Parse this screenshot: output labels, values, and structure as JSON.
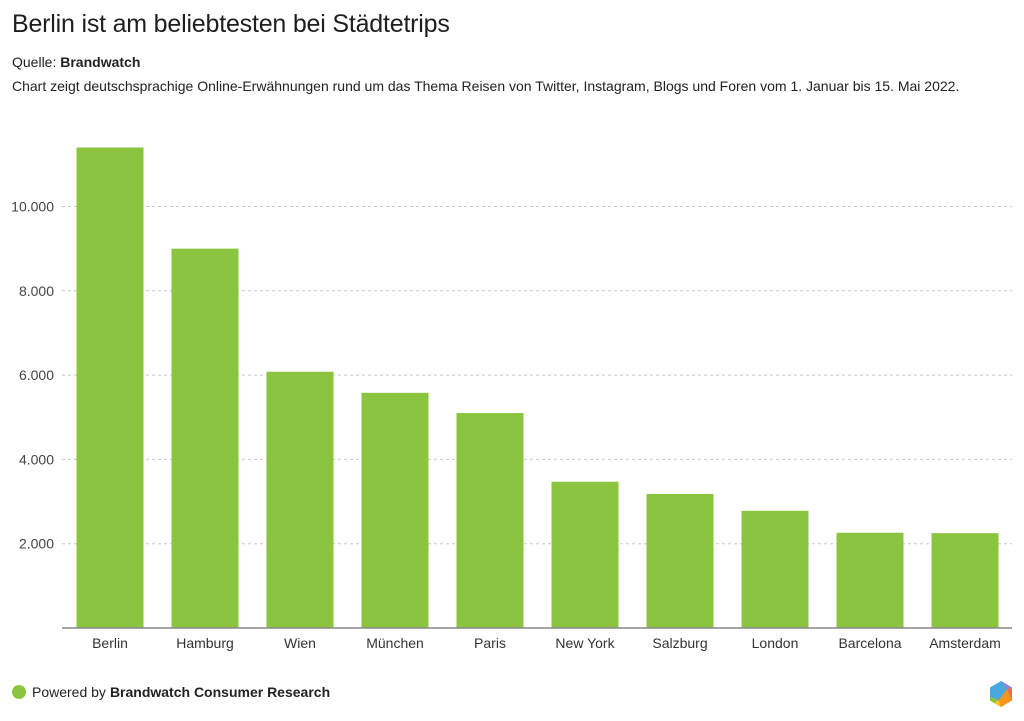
{
  "header": {
    "title": "Berlin ist am beliebtesten bei Städtetrips",
    "source_label": "Quelle:",
    "source_name": "Brandwatch",
    "description": "Chart zeigt deutschsprachige Online-Erwähnungen rund um das Thema Reisen von Twitter, Instagram, Blogs und Foren vom 1. Januar bis 15. Mai 2022."
  },
  "footer": {
    "powered_label": "Powered by",
    "powered_name": "Brandwatch Consumer Research",
    "dot_color": "#8bc53f",
    "logo_icon": "brandwatch-hexagon-logo"
  },
  "chart_data": {
    "type": "bar",
    "title": "Berlin ist am beliebtesten bei Städtetrips",
    "xlabel": "",
    "ylabel": "",
    "categories": [
      "Berlin",
      "Hamburg",
      "Wien",
      "München",
      "Paris",
      "New York",
      "Salzburg",
      "London",
      "Barcelona",
      "Amsterdam"
    ],
    "values": [
      11400,
      9000,
      6080,
      5580,
      5100,
      3470,
      3180,
      2780,
      2260,
      2250
    ],
    "ylim": [
      0,
      11400
    ],
    "yticks": [
      2000,
      4000,
      6000,
      8000,
      10000
    ],
    "ytick_labels": [
      "2.000",
      "4.000",
      "6.000",
      "8.000",
      "10.000"
    ],
    "grid": true,
    "legend": "none",
    "bar_color": "#8bc53f"
  }
}
